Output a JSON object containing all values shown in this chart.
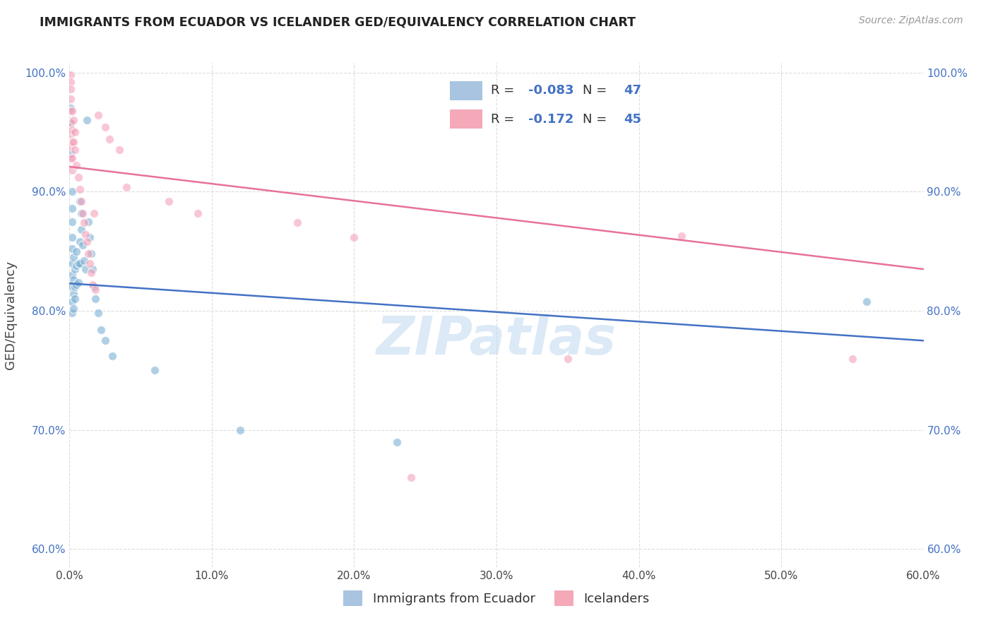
{
  "title": "IMMIGRANTS FROM ECUADOR VS ICELANDER GED/EQUIVALENCY CORRELATION CHART",
  "source": "Source: ZipAtlas.com",
  "ylabel_label": "GED/Equivalency",
  "xmin": 0.0,
  "xmax": 0.6,
  "ymin": 0.585,
  "ymax": 1.008,
  "blue_scatter": [
    [
      0.001,
      0.97
    ],
    [
      0.001,
      0.958
    ],
    [
      0.001,
      0.932
    ],
    [
      0.002,
      0.9
    ],
    [
      0.002,
      0.886
    ],
    [
      0.002,
      0.875
    ],
    [
      0.002,
      0.862
    ],
    [
      0.002,
      0.852
    ],
    [
      0.002,
      0.84
    ],
    [
      0.002,
      0.83
    ],
    [
      0.002,
      0.82
    ],
    [
      0.002,
      0.808
    ],
    [
      0.002,
      0.798
    ],
    [
      0.003,
      0.845
    ],
    [
      0.003,
      0.826
    ],
    [
      0.003,
      0.814
    ],
    [
      0.003,
      0.802
    ],
    [
      0.004,
      0.835
    ],
    [
      0.004,
      0.82
    ],
    [
      0.004,
      0.81
    ],
    [
      0.005,
      0.85
    ],
    [
      0.005,
      0.838
    ],
    [
      0.005,
      0.822
    ],
    [
      0.006,
      0.84
    ],
    [
      0.006,
      0.824
    ],
    [
      0.007,
      0.892
    ],
    [
      0.007,
      0.858
    ],
    [
      0.007,
      0.84
    ],
    [
      0.008,
      0.882
    ],
    [
      0.008,
      0.868
    ],
    [
      0.009,
      0.855
    ],
    [
      0.01,
      0.842
    ],
    [
      0.011,
      0.835
    ],
    [
      0.012,
      0.96
    ],
    [
      0.013,
      0.875
    ],
    [
      0.014,
      0.862
    ],
    [
      0.015,
      0.848
    ],
    [
      0.016,
      0.835
    ],
    [
      0.017,
      0.82
    ],
    [
      0.018,
      0.81
    ],
    [
      0.02,
      0.798
    ],
    [
      0.022,
      0.784
    ],
    [
      0.025,
      0.775
    ],
    [
      0.03,
      0.762
    ],
    [
      0.06,
      0.75
    ],
    [
      0.12,
      0.7
    ],
    [
      0.23,
      0.69
    ],
    [
      0.56,
      0.808
    ]
  ],
  "pink_scatter": [
    [
      0.001,
      0.998
    ],
    [
      0.001,
      0.992
    ],
    [
      0.001,
      0.986
    ],
    [
      0.001,
      0.978
    ],
    [
      0.001,
      0.968
    ],
    [
      0.001,
      0.958
    ],
    [
      0.001,
      0.948
    ],
    [
      0.001,
      0.938
    ],
    [
      0.001,
      0.928
    ],
    [
      0.002,
      0.968
    ],
    [
      0.002,
      0.952
    ],
    [
      0.002,
      0.942
    ],
    [
      0.002,
      0.928
    ],
    [
      0.002,
      0.918
    ],
    [
      0.003,
      0.96
    ],
    [
      0.003,
      0.942
    ],
    [
      0.004,
      0.95
    ],
    [
      0.004,
      0.935
    ],
    [
      0.005,
      0.922
    ],
    [
      0.006,
      0.912
    ],
    [
      0.007,
      0.902
    ],
    [
      0.008,
      0.892
    ],
    [
      0.009,
      0.882
    ],
    [
      0.01,
      0.874
    ],
    [
      0.011,
      0.864
    ],
    [
      0.012,
      0.858
    ],
    [
      0.013,
      0.848
    ],
    [
      0.014,
      0.84
    ],
    [
      0.015,
      0.832
    ],
    [
      0.016,
      0.822
    ],
    [
      0.017,
      0.882
    ],
    [
      0.018,
      0.818
    ],
    [
      0.02,
      0.964
    ],
    [
      0.025,
      0.954
    ],
    [
      0.028,
      0.944
    ],
    [
      0.035,
      0.935
    ],
    [
      0.04,
      0.904
    ],
    [
      0.07,
      0.892
    ],
    [
      0.09,
      0.882
    ],
    [
      0.16,
      0.874
    ],
    [
      0.2,
      0.862
    ],
    [
      0.24,
      0.66
    ],
    [
      0.35,
      0.76
    ],
    [
      0.43,
      0.863
    ],
    [
      0.55,
      0.76
    ]
  ],
  "blue_line": [
    [
      0.0,
      0.823
    ],
    [
      0.6,
      0.775
    ]
  ],
  "pink_line": [
    [
      0.0,
      0.921
    ],
    [
      0.6,
      0.835
    ]
  ],
  "blue_line_color": "#4472c4",
  "pink_line_color": "#e8719a",
  "blue_scatter_color": "#7bafd4",
  "pink_scatter_color": "#f4a0b8",
  "watermark": "ZIPatlas",
  "scatter_size": 75,
  "scatter_alpha": 0.6,
  "scatter_edge": "white",
  "scatter_linewidth": 1.0
}
